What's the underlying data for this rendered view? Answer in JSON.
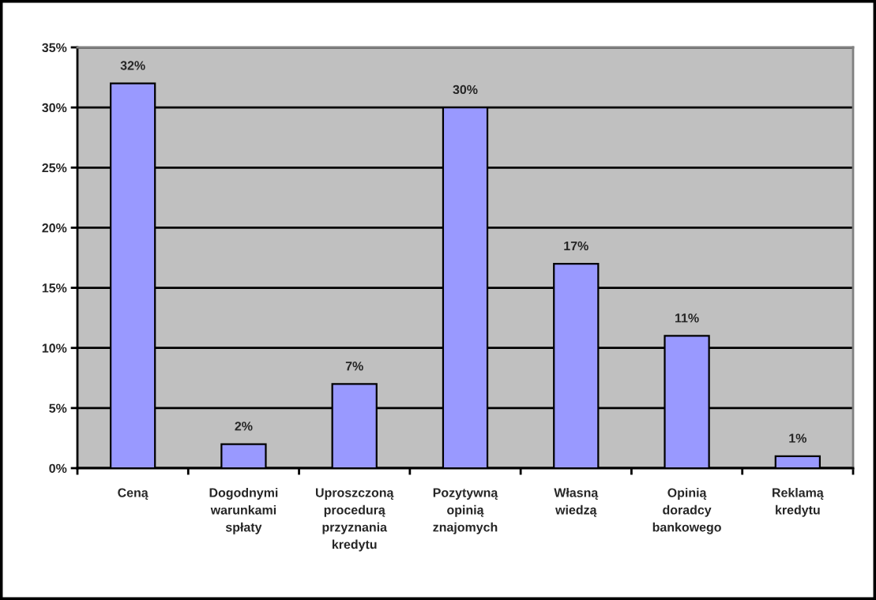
{
  "chart_data": {
    "type": "bar",
    "categories": [
      "Ceną",
      "Dogodnymi\nwarunkami\nspłaty",
      "Uproszczoną\nprocedurą\nprzyznania\nkredytu",
      "Pozytywną\nopinią\nznajomych",
      "Własną\nwiedzą",
      "Opinią\ndoradcy\nbankowego",
      "Reklamą\nkredytu"
    ],
    "values": [
      32,
      2,
      7,
      30,
      17,
      11,
      1
    ],
    "value_labels": [
      "32%",
      "2%",
      "7%",
      "30%",
      "17%",
      "11%",
      "1%"
    ],
    "color": "#9999ff",
    "ylim": [
      0,
      35
    ],
    "yticks": [
      {
        "value": 0,
        "label": "0%"
      },
      {
        "value": 5,
        "label": "5%"
      },
      {
        "value": 10,
        "label": "10%"
      },
      {
        "value": 15,
        "label": "15%"
      },
      {
        "value": 20,
        "label": "20%"
      },
      {
        "value": 25,
        "label": "25%"
      },
      {
        "value": 30,
        "label": "30%"
      },
      {
        "value": 35,
        "label": "35%"
      }
    ],
    "grid": "y"
  }
}
